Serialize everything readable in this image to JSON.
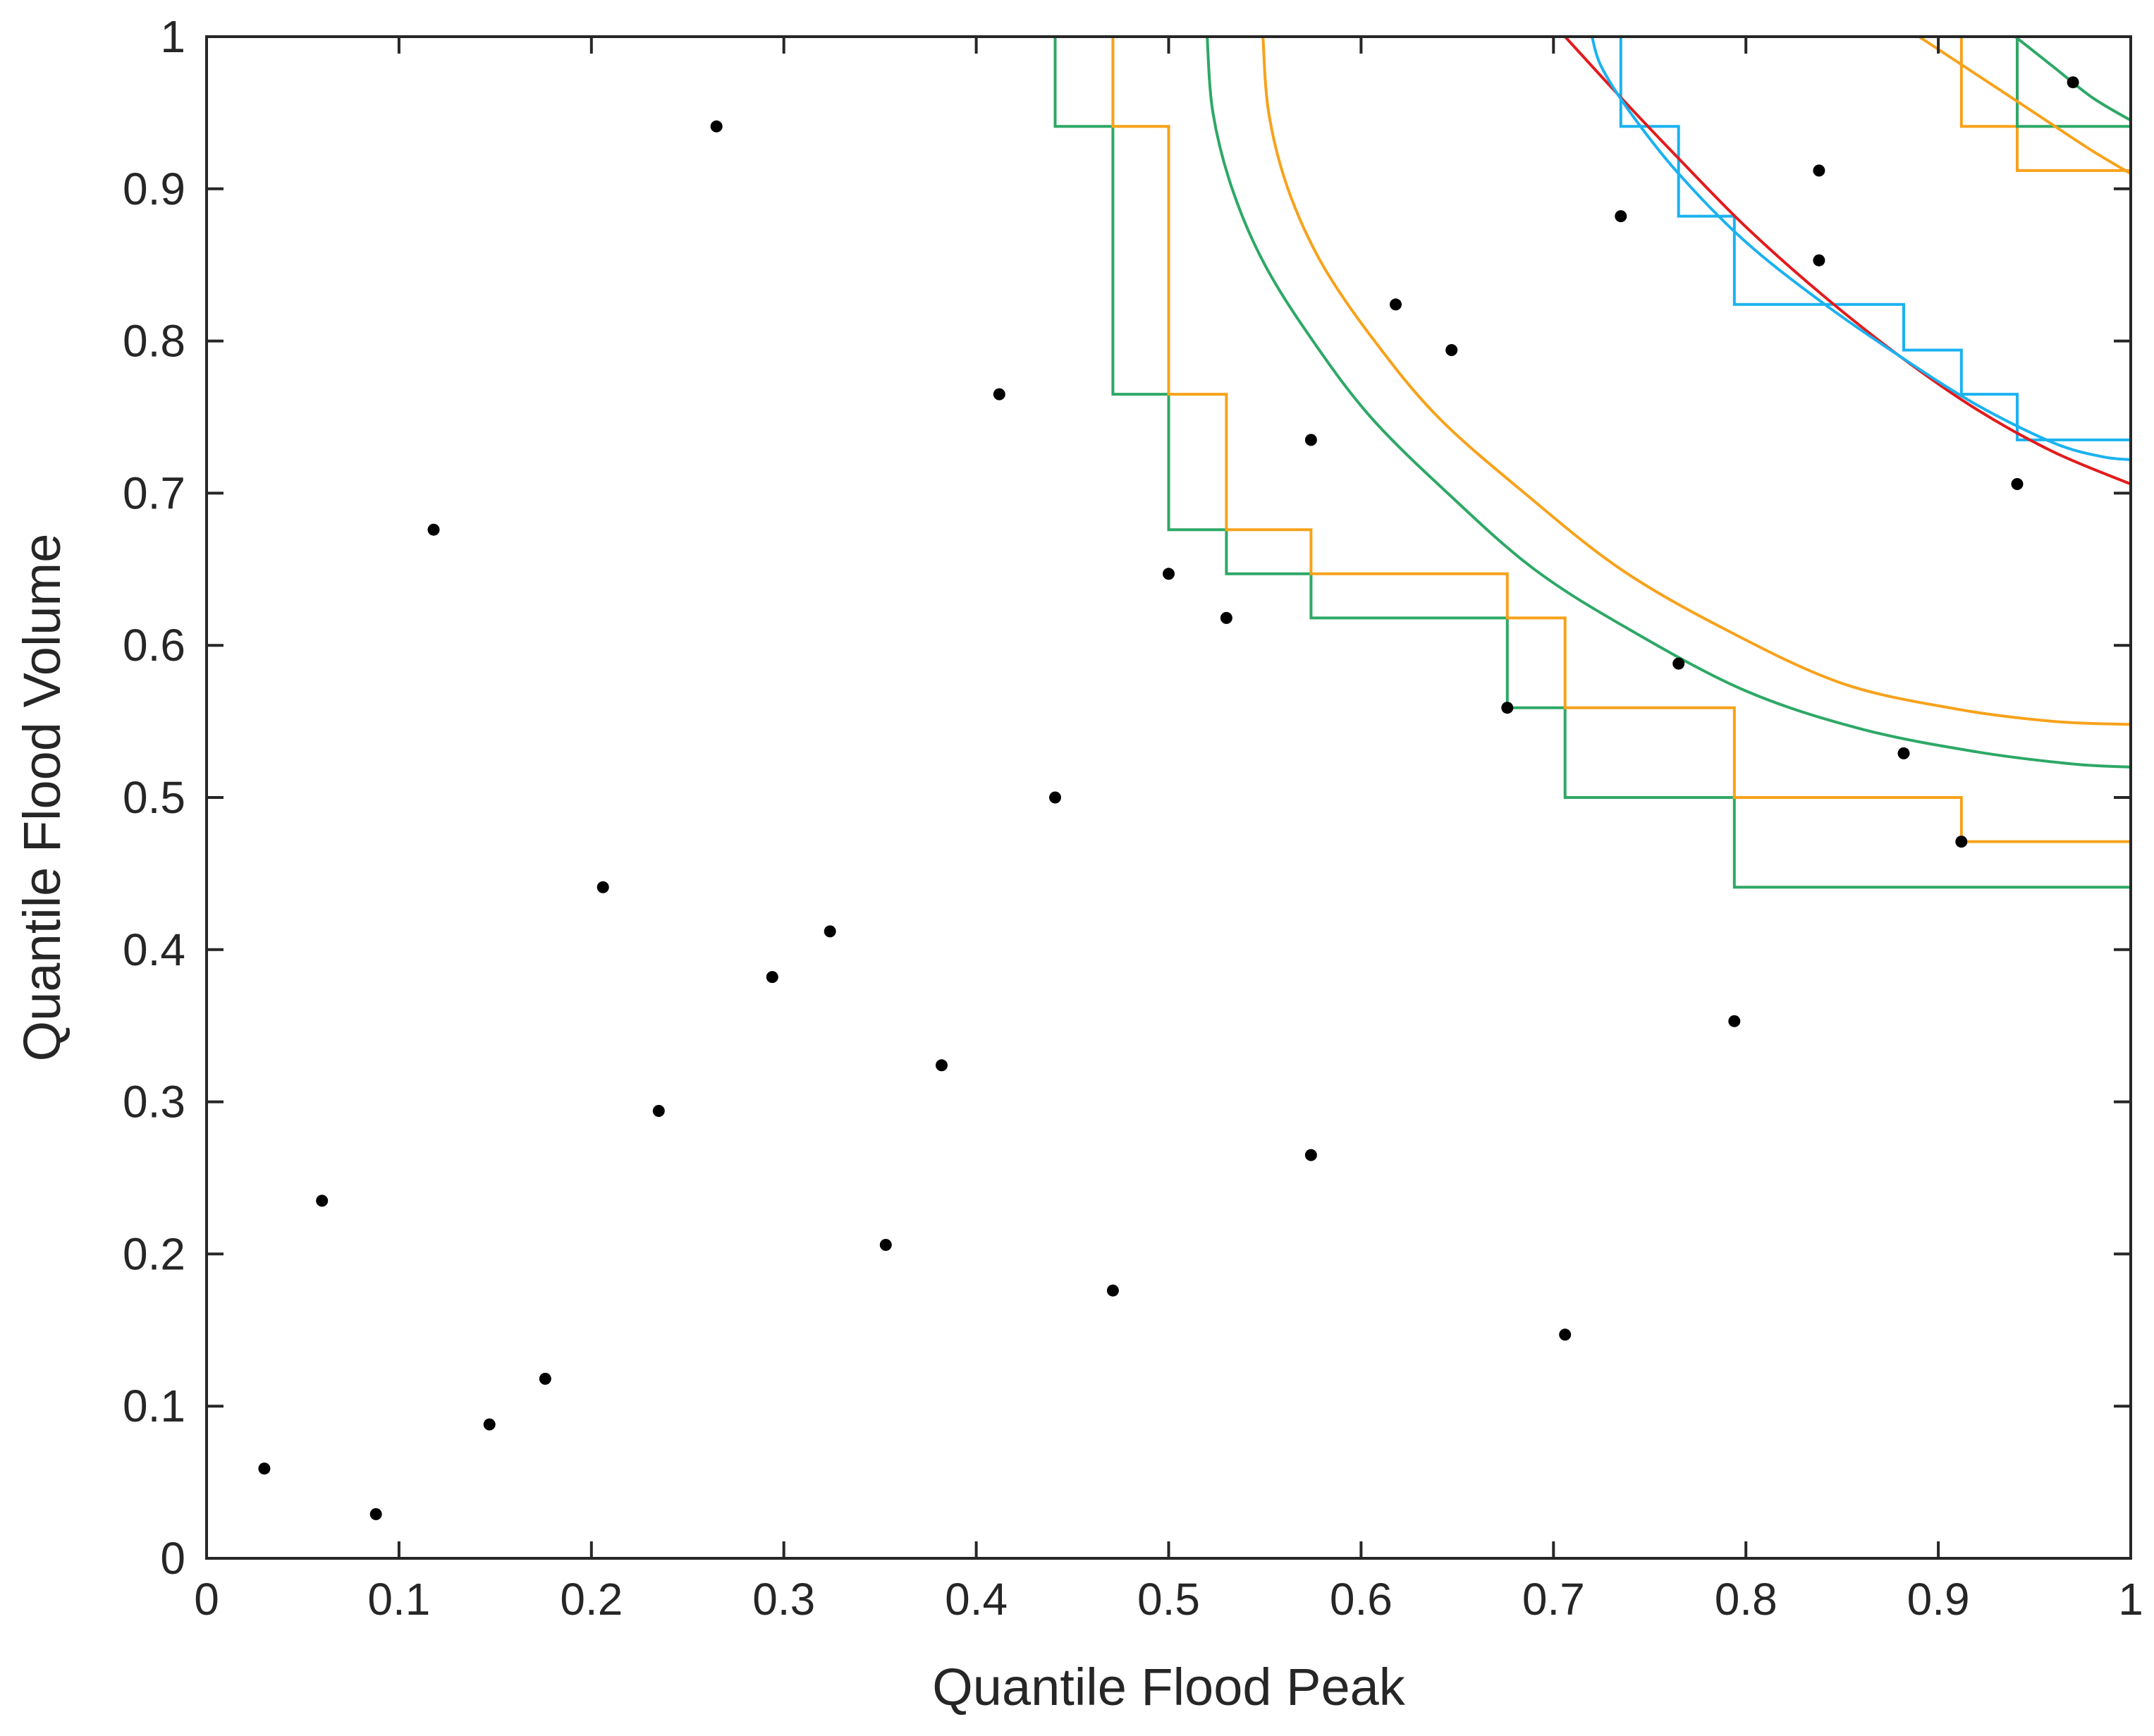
{
  "chart_data": {
    "type": "scatter",
    "title": "",
    "xlabel": "Quantile Flood Peak",
    "ylabel": "Quantile Flood Volume",
    "xlim": [
      0,
      1
    ],
    "ylim": [
      0,
      1
    ],
    "xticks": [
      0,
      0.1,
      0.2,
      0.3,
      0.4,
      0.5,
      0.6,
      0.7,
      0.8,
      0.9,
      1
    ],
    "yticks": [
      0,
      0.1,
      0.2,
      0.3,
      0.4,
      0.5,
      0.6,
      0.7,
      0.8,
      0.9,
      1
    ],
    "xtick_labels": [
      "0",
      "0.1",
      "0.2",
      "0.3",
      "0.4",
      "0.5",
      "0.6",
      "0.7",
      "0.8",
      "0.9",
      "1"
    ],
    "ytick_labels": [
      "0",
      "0.1",
      "0.2",
      "0.3",
      "0.4",
      "0.5",
      "0.6",
      "0.7",
      "0.8",
      "0.9",
      "1"
    ],
    "grid": false,
    "box": true,
    "colors": {
      "points": "#000000",
      "green": "#2DA866",
      "orange": "#F7A21B",
      "red": "#E31A1C",
      "blue": "#1BB2F0",
      "axis": "#262626"
    },
    "points": {
      "x": [
        0.03,
        0.06,
        0.088,
        0.118,
        0.147,
        0.176,
        0.206,
        0.235,
        0.265,
        0.294,
        0.324,
        0.353,
        0.382,
        0.412,
        0.441,
        0.471,
        0.5,
        0.53,
        0.574,
        0.574,
        0.618,
        0.647,
        0.676,
        0.706,
        0.735,
        0.765,
        0.794,
        0.838,
        0.838,
        0.882,
        0.912,
        0.941,
        0.97
      ],
      "y": [
        0.059,
        0.235,
        0.029,
        0.676,
        0.088,
        0.118,
        0.441,
        0.294,
        0.941,
        0.382,
        0.412,
        0.206,
        0.324,
        0.765,
        0.5,
        0.176,
        0.647,
        0.618,
        0.735,
        0.265,
        0.824,
        0.794,
        0.559,
        0.147,
        0.882,
        0.588,
        0.353,
        0.912,
        0.853,
        0.529,
        0.471,
        0.706,
        0.97
      ]
    },
    "step_lines": [
      {
        "color": "green",
        "points": [
          [
            0.441,
            1
          ],
          [
            0.441,
            0.941
          ],
          [
            0.471,
            0.941
          ],
          [
            0.471,
            0.765
          ],
          [
            0.5,
            0.765
          ],
          [
            0.5,
            0.676
          ],
          [
            0.53,
            0.676
          ],
          [
            0.53,
            0.647
          ],
          [
            0.574,
            0.647
          ],
          [
            0.574,
            0.618
          ],
          [
            0.676,
            0.618
          ],
          [
            0.676,
            0.559
          ],
          [
            0.706,
            0.559
          ],
          [
            0.706,
            0.5
          ],
          [
            0.794,
            0.5
          ],
          [
            0.794,
            0.441
          ],
          [
            1,
            0.441
          ]
        ]
      },
      {
        "color": "orange",
        "points": [
          [
            0.471,
            1
          ],
          [
            0.471,
            0.941
          ],
          [
            0.5,
            0.941
          ],
          [
            0.5,
            0.765
          ],
          [
            0.53,
            0.765
          ],
          [
            0.53,
            0.676
          ],
          [
            0.574,
            0.676
          ],
          [
            0.574,
            0.647
          ],
          [
            0.676,
            0.647
          ],
          [
            0.676,
            0.618
          ],
          [
            0.706,
            0.618
          ],
          [
            0.706,
            0.559
          ],
          [
            0.794,
            0.559
          ],
          [
            0.794,
            0.5
          ],
          [
            0.912,
            0.5
          ],
          [
            0.912,
            0.471
          ],
          [
            1,
            0.471
          ]
        ]
      },
      {
        "color": "blue",
        "points": [
          [
            0.735,
            1
          ],
          [
            0.735,
            0.941
          ],
          [
            0.765,
            0.941
          ],
          [
            0.765,
            0.882
          ],
          [
            0.794,
            0.882
          ],
          [
            0.794,
            0.824
          ],
          [
            0.882,
            0.824
          ],
          [
            0.882,
            0.794
          ],
          [
            0.912,
            0.794
          ],
          [
            0.912,
            0.765
          ],
          [
            0.941,
            0.765
          ],
          [
            0.941,
            0.735
          ],
          [
            1,
            0.735
          ]
        ]
      },
      {
        "color": "orange",
        "points": [
          [
            0.912,
            1
          ],
          [
            0.912,
            0.941
          ],
          [
            0.941,
            0.941
          ],
          [
            0.941,
            0.912
          ],
          [
            1,
            0.912
          ]
        ]
      },
      {
        "color": "green",
        "points": [
          [
            0.941,
            1
          ],
          [
            0.941,
            0.941
          ],
          [
            1,
            0.941
          ]
        ]
      }
    ],
    "contour_lines": [
      {
        "color": "green",
        "points": [
          [
            0.52,
            1
          ],
          [
            0.523,
            0.95
          ],
          [
            0.533,
            0.9
          ],
          [
            0.55,
            0.85
          ],
          [
            0.575,
            0.8
          ],
          [
            0.605,
            0.75
          ],
          [
            0.645,
            0.7
          ],
          [
            0.69,
            0.65
          ],
          [
            0.74,
            0.61
          ],
          [
            0.8,
            0.57
          ],
          [
            0.86,
            0.545
          ],
          [
            0.92,
            0.53
          ],
          [
            0.97,
            0.522
          ],
          [
            1,
            0.52
          ]
        ]
      },
      {
        "color": "orange",
        "points": [
          [
            0.549,
            1
          ],
          [
            0.552,
            0.95
          ],
          [
            0.562,
            0.9
          ],
          [
            0.58,
            0.85
          ],
          [
            0.607,
            0.8
          ],
          [
            0.64,
            0.75
          ],
          [
            0.685,
            0.7
          ],
          [
            0.735,
            0.65
          ],
          [
            0.79,
            0.61
          ],
          [
            0.85,
            0.575
          ],
          [
            0.91,
            0.558
          ],
          [
            0.96,
            0.55
          ],
          [
            1,
            0.548
          ]
        ]
      },
      {
        "color": "red",
        "points": [
          [
            0.706,
            1
          ],
          [
            0.735,
            0.96
          ],
          [
            0.765,
            0.92
          ],
          [
            0.8,
            0.875
          ],
          [
            0.84,
            0.83
          ],
          [
            0.88,
            0.79
          ],
          [
            0.92,
            0.755
          ],
          [
            0.96,
            0.727
          ],
          [
            1,
            0.706
          ]
        ]
      },
      {
        "color": "blue",
        "points": [
          [
            0.72,
            1
          ],
          [
            0.725,
            0.98
          ],
          [
            0.74,
            0.95
          ],
          [
            0.765,
            0.91
          ],
          [
            0.8,
            0.865
          ],
          [
            0.84,
            0.825
          ],
          [
            0.88,
            0.79
          ],
          [
            0.92,
            0.758
          ],
          [
            0.96,
            0.733
          ],
          [
            0.985,
            0.724
          ],
          [
            1,
            0.722
          ]
        ]
      },
      {
        "color": "orange",
        "points": [
          [
            0.89,
            1
          ],
          [
            0.92,
            0.975
          ],
          [
            0.95,
            0.95
          ],
          [
            0.98,
            0.925
          ],
          [
            1,
            0.91
          ]
        ]
      },
      {
        "color": "green",
        "points": [
          [
            0.94,
            1
          ],
          [
            0.96,
            0.98
          ],
          [
            0.98,
            0.96
          ],
          [
            1,
            0.945
          ]
        ]
      }
    ]
  }
}
